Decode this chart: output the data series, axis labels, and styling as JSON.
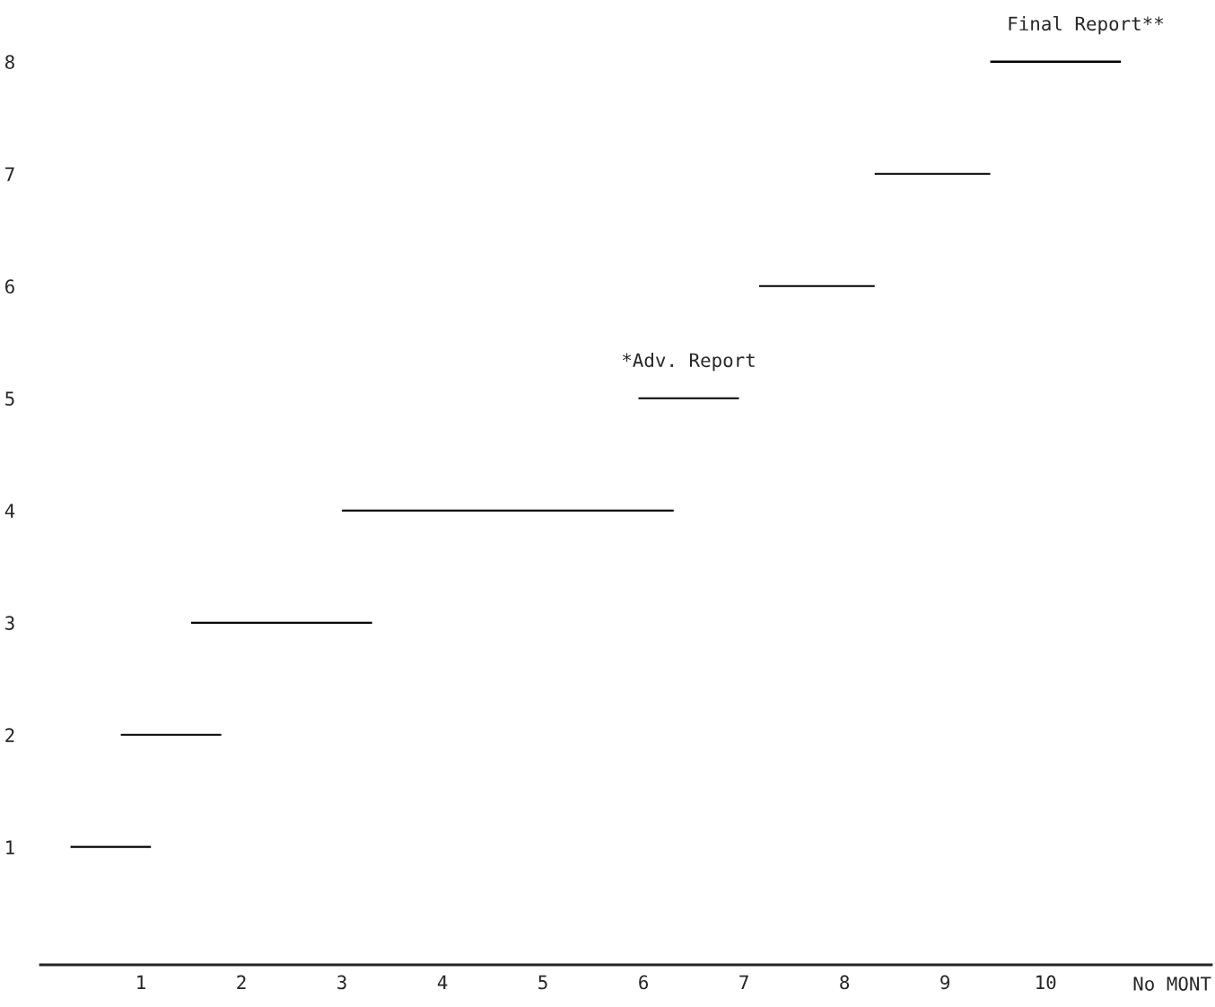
{
  "chart_data": {
    "type": "bar",
    "orientation": "horizontal",
    "xlabel": "No MONT",
    "categories": [
      "8",
      "7",
      "6",
      "5",
      "4",
      "3",
      "2",
      "1"
    ],
    "base": [
      9.45,
      8.3,
      7.15,
      5.95,
      3.0,
      1.5,
      0.8,
      0.3
    ],
    "values": [
      1.3,
      1.15,
      1.15,
      1.0,
      3.3,
      1.8,
      1.0,
      0.8
    ],
    "color": "#000000",
    "xlim": [
      0,
      11.65
    ],
    "xticks": [
      1,
      2,
      3,
      4,
      5,
      6,
      7,
      8,
      9,
      10
    ],
    "annotations": [
      {
        "text": "*Adv. Report",
        "x": 6.45,
        "y": "5"
      },
      {
        "text": "Final Report**",
        "x": 10.4,
        "y": "8"
      }
    ],
    "grid": false,
    "legend": false
  }
}
